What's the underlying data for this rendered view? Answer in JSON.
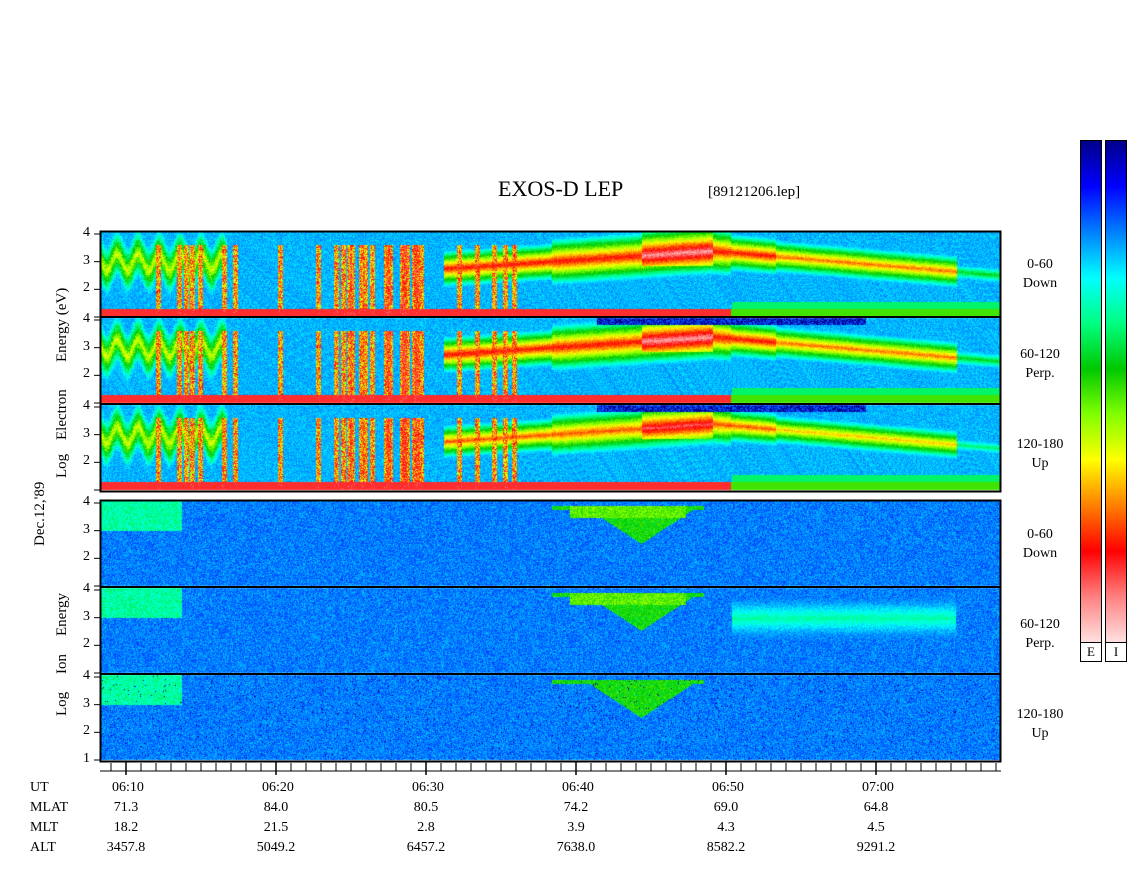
{
  "chart_data": {
    "type": "heatmap",
    "title": "EXOS-D LEP",
    "file_label": "[89121206.lep]",
    "date_label": "Dec.12,'89",
    "groups": [
      {
        "ylabel": "Log Electron Energy (eV)",
        "ylabel_lines": [
          "Log",
          "Electron",
          "Energy (eV)"
        ],
        "panels": [
          {
            "label_lines": [
              "0-60",
              "Down"
            ],
            "yticks": [
              "4",
              "3",
              "2"
            ]
          },
          {
            "label_lines": [
              "60-120",
              "Perp."
            ],
            "yticks": [
              "4",
              "3",
              "2"
            ]
          },
          {
            "label_lines": [
              "120-180",
              "Up"
            ],
            "yticks": [
              "4",
              "3",
              "2"
            ]
          }
        ]
      },
      {
        "ylabel": "Log Ion Energy",
        "ylabel_lines": [
          "Log",
          "Ion",
          "Energy"
        ],
        "panels": [
          {
            "label_lines": [
              "0-60",
              "Down"
            ],
            "yticks": [
              "4",
              "3",
              "2"
            ]
          },
          {
            "label_lines": [
              "60-120",
              "Perp."
            ],
            "yticks": [
              "4",
              "3",
              "2"
            ]
          },
          {
            "label_lines": [
              "120-180",
              "Up"
            ],
            "yticks": [
              "4",
              "3",
              "2",
              "1"
            ]
          }
        ]
      }
    ],
    "ylim": [
      1,
      4
    ],
    "time_range": [
      "06:06",
      "06:48"
    ],
    "colorbar_keys": [
      "E",
      "I"
    ],
    "colormap": [
      "#00008b",
      "#0000ff",
      "#0080ff",
      "#00ffff",
      "#00ff80",
      "#00c800",
      "#80ff00",
      "#ffff00",
      "#ff8000",
      "#ff0000",
      "#ff8080",
      "#ffe0e0"
    ],
    "axis_rows": {
      "labels": [
        "UT",
        "MLAT",
        "MLT",
        "ALT"
      ],
      "columns": [
        {
          "UT": "06:10",
          "MLAT": "71.3",
          "MLT": "18.2",
          "ALT": "3457.8"
        },
        {
          "UT": "06:20",
          "MLAT": "84.0",
          "MLT": "21.5",
          "ALT": "5049.2"
        },
        {
          "UT": "06:30",
          "MLAT": "80.5",
          "MLT": "2.8",
          "ALT": "6457.2"
        },
        {
          "UT": "06:40",
          "MLAT": "74.2",
          "MLT": "3.9",
          "ALT": "7638.0"
        },
        {
          "UT": "06:50",
          "MLAT": "69.0",
          "MLT": "4.3",
          "ALT": "8582.2"
        },
        {
          "UT": "07:00",
          "MLAT": "64.8",
          "MLT": "4.5",
          "ALT": "9291.2"
        }
      ]
    }
  }
}
